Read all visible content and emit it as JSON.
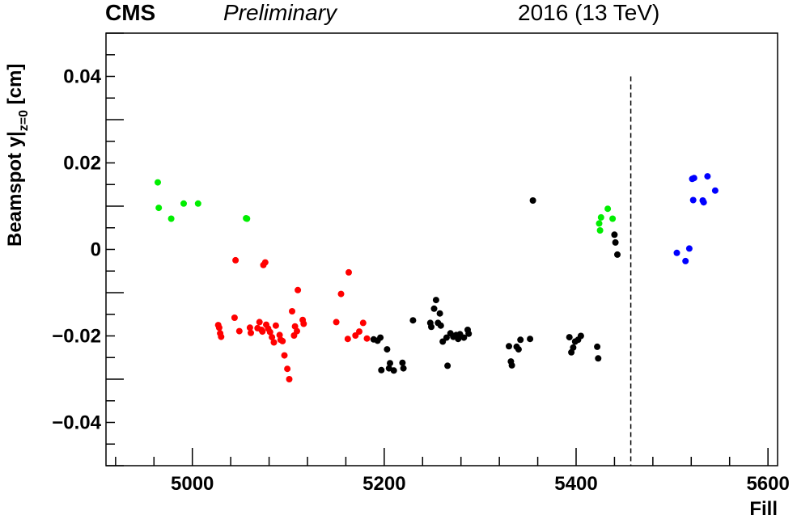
{
  "header": {
    "experiment": "CMS",
    "status": "Preliminary",
    "run": "2016 (13 TeV)"
  },
  "chart_data": {
    "type": "scatter",
    "xlabel": "Fill",
    "ylabel": "Beamspot y|z=0 [cm]",
    "ylabel_main": "Beamspot y|",
    "ylabel_sub": "z=0",
    "ylabel_unit": " [cm]",
    "xlim": [
      4910,
      5610
    ],
    "ylim": [
      -0.05,
      0.05
    ],
    "x_ticks": [
      5000,
      5200,
      5400,
      5600
    ],
    "x_tick_labels": [
      "5000",
      "5200",
      "5400",
      "5600"
    ],
    "y_ticks": [
      -0.04,
      -0.02,
      0,
      0.02,
      0.04
    ],
    "y_tick_labels": [
      "−0.04",
      "−0.02",
      "0",
      "0.02",
      "0.04"
    ],
    "grid": false,
    "vline": {
      "x": 5457,
      "y_top": 0.04,
      "style": "dashed"
    },
    "series": [
      {
        "color": "#00ee00",
        "points": [
          [
            4964,
            0.0155
          ],
          [
            4965,
            0.0096
          ],
          [
            4978,
            0.0071
          ],
          [
            4991,
            0.0106
          ],
          [
            5006,
            0.0106
          ],
          [
            5056,
            0.0072
          ],
          [
            5057,
            0.0071
          ],
          [
            5424,
            0.006
          ],
          [
            5425,
            0.0044
          ],
          [
            5426,
            0.0074
          ],
          [
            5433,
            0.0094
          ],
          [
            5438,
            0.0071
          ]
        ]
      },
      {
        "color": "#ff0000",
        "points": [
          [
            5027,
            -0.0175
          ],
          [
            5028,
            -0.0181
          ],
          [
            5029,
            -0.0194
          ],
          [
            5030,
            -0.0202
          ],
          [
            5044,
            -0.0158
          ],
          [
            5045,
            -0.0025
          ],
          [
            5049,
            -0.0189
          ],
          [
            5060,
            -0.0181
          ],
          [
            5061,
            -0.0193
          ],
          [
            5068,
            -0.0182
          ],
          [
            5070,
            -0.0168
          ],
          [
            5072,
            -0.0186
          ],
          [
            5073,
            -0.019
          ],
          [
            5074,
            -0.0036
          ],
          [
            5076,
            -0.003
          ],
          [
            5077,
            -0.0174
          ],
          [
            5079,
            -0.0183
          ],
          [
            5081,
            -0.0191
          ],
          [
            5083,
            -0.0203
          ],
          [
            5085,
            -0.0215
          ],
          [
            5087,
            -0.0176
          ],
          [
            5091,
            -0.0198
          ],
          [
            5092,
            -0.0209
          ],
          [
            5094,
            -0.0212
          ],
          [
            5096,
            -0.0245
          ],
          [
            5099,
            -0.0276
          ],
          [
            5101,
            -0.03
          ],
          [
            5104,
            -0.0143
          ],
          [
            5106,
            -0.0199
          ],
          [
            5107,
            -0.0178
          ],
          [
            5109,
            -0.0189
          ],
          [
            5110,
            -0.0094
          ],
          [
            5115,
            -0.0163
          ],
          [
            5116,
            -0.0172
          ],
          [
            5150,
            -0.0168
          ],
          [
            5155,
            -0.0103
          ],
          [
            5162,
            -0.0207
          ],
          [
            5163,
            -0.0053
          ],
          [
            5170,
            -0.0199
          ],
          [
            5174,
            -0.019
          ],
          [
            5178,
            -0.017
          ],
          [
            5182,
            -0.0206
          ]
        ]
      },
      {
        "color": "#000000",
        "points": [
          [
            5189,
            -0.0208
          ],
          [
            5193,
            -0.0211
          ],
          [
            5196,
            -0.0204
          ],
          [
            5197,
            -0.0279
          ],
          [
            5203,
            -0.0231
          ],
          [
            5205,
            -0.0275
          ],
          [
            5206,
            -0.0263
          ],
          [
            5210,
            -0.028
          ],
          [
            5219,
            -0.0262
          ],
          [
            5220,
            -0.0275
          ],
          [
            5230,
            -0.0164
          ],
          [
            5248,
            -0.017
          ],
          [
            5249,
            -0.0179
          ],
          [
            5252,
            -0.0137
          ],
          [
            5254,
            -0.0117
          ],
          [
            5256,
            -0.017
          ],
          [
            5258,
            -0.0148
          ],
          [
            5259,
            -0.0176
          ],
          [
            5261,
            -0.0213
          ],
          [
            5265,
            -0.0204
          ],
          [
            5266,
            -0.0269
          ],
          [
            5269,
            -0.0194
          ],
          [
            5272,
            -0.0202
          ],
          [
            5275,
            -0.0198
          ],
          [
            5277,
            -0.0207
          ],
          [
            5279,
            -0.0196
          ],
          [
            5283,
            -0.0204
          ],
          [
            5287,
            -0.0186
          ],
          [
            5288,
            -0.0195
          ],
          [
            5330,
            -0.0224
          ],
          [
            5332,
            -0.0259
          ],
          [
            5333,
            -0.0268
          ],
          [
            5338,
            -0.0225
          ],
          [
            5340,
            -0.0231
          ],
          [
            5342,
            -0.0209
          ],
          [
            5352,
            -0.0207
          ],
          [
            5355,
            0.0113
          ],
          [
            5393,
            -0.0203
          ],
          [
            5395,
            -0.0238
          ],
          [
            5397,
            -0.0227
          ],
          [
            5399,
            -0.0213
          ],
          [
            5402,
            -0.0209
          ],
          [
            5405,
            -0.02
          ],
          [
            5422,
            -0.0225
          ],
          [
            5423,
            -0.0252
          ],
          [
            5440,
            0.0034
          ],
          [
            5441,
            0.0016
          ],
          [
            5443,
            -0.0012
          ]
        ]
      },
      {
        "color": "#0000ff",
        "points": [
          [
            5505,
            -0.0008
          ],
          [
            5514,
            -0.0027
          ],
          [
            5518,
            0.0002
          ],
          [
            5521,
            0.0163
          ],
          [
            5522,
            0.0114
          ],
          [
            5523,
            0.0165
          ],
          [
            5532,
            0.0113
          ],
          [
            5533,
            0.0109
          ],
          [
            5537,
            0.0169
          ],
          [
            5545,
            0.0136
          ]
        ]
      }
    ]
  }
}
